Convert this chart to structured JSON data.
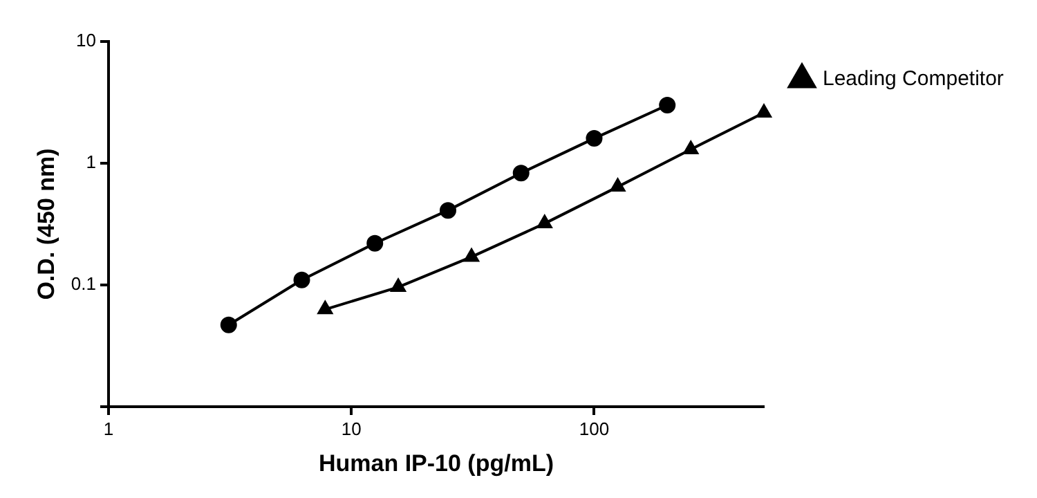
{
  "chart_data": {
    "type": "line",
    "xlabel": "Human IP-10 (pg/mL)",
    "ylabel": "O.D. (450 nm)",
    "log": "xy",
    "grid": false,
    "legend": "right",
    "line_style": "solid",
    "xlim": [
      1,
      500
    ],
    "xticks": [
      1,
      10,
      100
    ],
    "ylim": [
      0.01,
      10
    ],
    "yticks": [
      {
        "value": 0.01,
        "label": null
      },
      0.1,
      1,
      10
    ],
    "series": [
      {
        "color": "#000000",
        "marker": "circle",
        "x": [
          3.125,
          6.25,
          12.5,
          25,
          50,
          100,
          200
        ],
        "values": [
          0.047,
          0.11,
          0.22,
          0.41,
          0.83,
          1.6,
          3.0
        ]
      },
      {
        "name": "Leading Competitor",
        "color": "#000000",
        "marker": "triangle",
        "x": [
          7.8,
          15.6,
          31.25,
          62.5,
          125,
          250,
          500
        ],
        "values": [
          0.063,
          0.096,
          0.17,
          0.32,
          0.64,
          1.3,
          2.6
        ]
      }
    ]
  }
}
